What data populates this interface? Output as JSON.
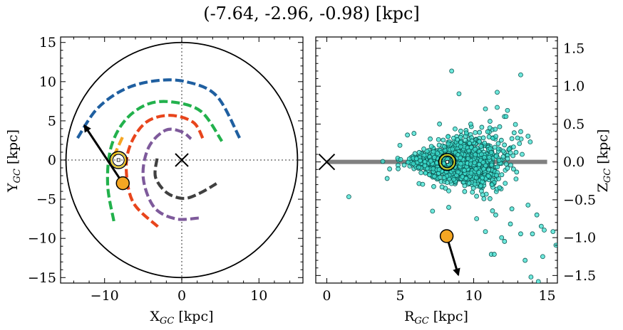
{
  "title": "(-7.64, -2.96, -0.98) [kpc]",
  "chart_data": [
    {
      "type": "scatter",
      "xlabel": "X",
      "xlabel_sub": "GC",
      "xlabel_unit": " [kpc]",
      "ylabel": "Y",
      "ylabel_sub": "GC",
      "ylabel_unit": " [kpc]",
      "xlim": [
        -15.7,
        15.7
      ],
      "ylim": [
        -15.7,
        15.7
      ],
      "xticks": [
        -10,
        0,
        10
      ],
      "yticks": [
        -15,
        -10,
        -5,
        0,
        5,
        10,
        15
      ],
      "xtick_labels": [
        "−10",
        "0",
        "10"
      ],
      "ytick_labels": [
        "−15",
        "−10",
        "−5",
        "0",
        "5",
        "10",
        "15"
      ],
      "galaxy_edge_radius": 15,
      "galactic_center": [
        0,
        0
      ],
      "sun": [
        -8.2,
        0
      ],
      "cluster": [
        -7.64,
        -2.96
      ],
      "velocity_arrow": {
        "from": [
          -7.64,
          -2.96
        ],
        "to": [
          -12.6,
          4.4
        ]
      },
      "spiral_arms": [
        {
          "color": "#1f5fa0",
          "points": [
            [
              -13.5,
              2.8
            ],
            [
              -11,
              6.5
            ],
            [
              -7.5,
              9
            ],
            [
              -3.5,
              10.1
            ],
            [
              0.5,
              10
            ],
            [
              4.5,
              8.2
            ],
            [
              7.5,
              2.8
            ]
          ]
        },
        {
          "color": "#22b14c",
          "points": [
            [
              -8.8,
              -7.8
            ],
            [
              -9.6,
              -3.2
            ],
            [
              -9.2,
              1.5
            ],
            [
              -7.4,
              5
            ],
            [
              -4.5,
              7.1
            ],
            [
              -1.2,
              7.4
            ],
            [
              2.5,
              6.2
            ],
            [
              5.2,
              2.4
            ]
          ]
        },
        {
          "color": "#f5a623",
          "points": [
            [
              -8.8,
              0.5
            ],
            [
              -7.5,
              3.3
            ]
          ]
        },
        {
          "color": "#e8451c",
          "points": [
            [
              -3.1,
              -8.5
            ],
            [
              -6.3,
              -5.4
            ],
            [
              -7.2,
              -1
            ],
            [
              -6.5,
              2.3
            ],
            [
              -4.5,
              4.9
            ],
            [
              -1.5,
              5.7
            ],
            [
              1.5,
              4.8
            ],
            [
              2.8,
              2.6
            ]
          ]
        },
        {
          "color": "#7e5a9b",
          "points": [
            [
              2.2,
              -7.4
            ],
            [
              -0.8,
              -7.5
            ],
            [
              -3.6,
              -6
            ],
            [
              -5,
              -2.2
            ],
            [
              -4.3,
              1.6
            ],
            [
              -2.1,
              3.8
            ],
            [
              0,
              3.6
            ],
            [
              1.2,
              2.7
            ]
          ]
        },
        {
          "color": "#404040",
          "points": [
            [
              -3.2,
              0.2
            ],
            [
              -3.4,
              -2.2
            ],
            [
              -1.9,
              -4.2
            ],
            [
              0.3,
              -4.9
            ],
            [
              2.4,
              -4.2
            ],
            [
              4.5,
              -3
            ]
          ]
        }
      ]
    },
    {
      "type": "scatter",
      "xlabel": "R",
      "xlabel_sub": "GC",
      "xlabel_unit": " [kpc]",
      "ylabel": "Z",
      "ylabel_sub": "GC",
      "ylabel_unit": " [kpc]",
      "xlim": [
        -0.75,
        15.7
      ],
      "ylim": [
        -1.6,
        1.65
      ],
      "xticks": [
        0,
        5,
        10,
        15
      ],
      "yticks": [
        -1.5,
        -1.0,
        -0.5,
        0.0,
        0.5,
        1.0,
        1.5
      ],
      "xtick_labels": [
        "0",
        "5",
        "10",
        "15"
      ],
      "ytick_labels": [
        "−1.5",
        "−1.0",
        "−0.5",
        "0.0",
        "0.5",
        "1.0",
        "1.5"
      ],
      "galactic_center": [
        0,
        0
      ],
      "disk_plane": {
        "from": 0,
        "to": 15,
        "z": 0
      },
      "sun": [
        8.2,
        0
      ],
      "cluster": [
        8.16,
        -0.98
      ],
      "velocity_arrow": {
        "from": [
          8.16,
          -0.98
        ],
        "to": [
          8.95,
          -1.49
        ]
      },
      "stars": [
        [
          8.5,
          1.2
        ],
        [
          13.2,
          1.15
        ],
        [
          9,
          0.9
        ],
        [
          11.6,
          0.92
        ],
        [
          10.8,
          0.7
        ],
        [
          11.6,
          0.72
        ],
        [
          12.2,
          0.6
        ],
        [
          12.3,
          0.68
        ],
        [
          9.8,
          0.5
        ],
        [
          11.1,
          0.45
        ],
        [
          13.7,
          0.34
        ],
        [
          13.2,
          0.4
        ],
        [
          1.5,
          -0.46
        ],
        [
          7.2,
          -0.65
        ],
        [
          8.3,
          -0.6
        ],
        [
          10.2,
          -0.75
        ],
        [
          11.5,
          -0.7
        ],
        [
          12.5,
          -0.82
        ],
        [
          13.2,
          -0.95
        ],
        [
          14,
          -0.95
        ],
        [
          14.8,
          -0.9
        ],
        [
          14.6,
          -0.85
        ],
        [
          15.4,
          -0.92
        ],
        [
          15.6,
          -1.1
        ],
        [
          14.7,
          -1.25
        ],
        [
          13.5,
          -1.3
        ],
        [
          13.9,
          -1.52
        ],
        [
          14.4,
          -1.58
        ],
        [
          11.2,
          -1.22
        ],
        [
          10.8,
          -0.92
        ],
        [
          12.6,
          -0.62
        ],
        [
          13.7,
          -0.57
        ],
        [
          14.3,
          -0.7
        ],
        [
          11.9,
          -1
        ],
        [
          11.4,
          -1.22
        ],
        [
          12.1,
          -1.05
        ]
      ]
    }
  ]
}
